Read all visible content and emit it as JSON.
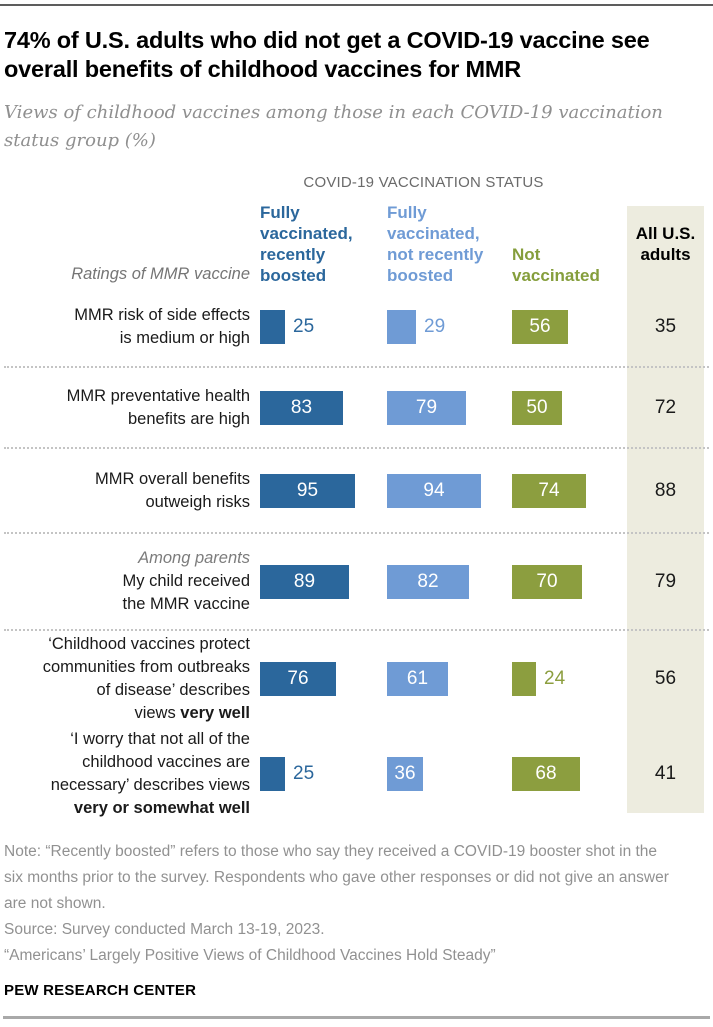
{
  "page": {
    "title": "74% of U.S. adults who did not get a COVID-19 vaccine see overall benefits of childhood vaccines for MMR",
    "subtitle": "Views of childhood vaccines among those in each COVID-19 vaccination status group (%)"
  },
  "chart_data": {
    "type": "bar",
    "orientation": "horizontal",
    "unit": "%",
    "xlim": [
      0,
      100
    ],
    "title": "74% of U.S. adults who did not get a COVID-19 vaccine see overall benefits of childhood vaccines for MMR",
    "subtitle": "Views of childhood vaccines among those in each COVID-19 vaccination status group (%)",
    "group_header": "COVID-19 VACCINATION STATUS",
    "rows_axis_label": "Ratings of MMR vaccine",
    "columns": [
      {
        "id": "fully-vaccinated-recently-boosted",
        "label": "Fully\nvaccinated,\nrecently\nboosted",
        "color": "#2b679c"
      },
      {
        "id": "fully-vaccinated-not-recently-boosted",
        "label": "Fully\nvaccinated,\nnot recently\nboosted",
        "color": "#6f9bd5"
      },
      {
        "id": "not-vaccinated",
        "label": "Not\nvaccinated",
        "color": "#8c9e3f"
      },
      {
        "id": "all-us-adults",
        "label": "All U.S.\nadults",
        "color": "#000000",
        "bg": "#edecdf"
      }
    ],
    "rows": [
      {
        "label": "MMR risk of side effects is medium or high",
        "label_lines": [
          [
            {
              "t": "MMR risk of side effects"
            }
          ],
          [
            {
              "t": "is medium or high"
            }
          ]
        ],
        "values": [
          25,
          29,
          56,
          35
        ],
        "value_inside": [
          false,
          false,
          true
        ],
        "separator_after": true
      },
      {
        "label": "MMR preventative health benefits are high",
        "label_lines": [
          [
            {
              "t": "MMR preventative health"
            }
          ],
          [
            {
              "t": "benefits are high"
            }
          ]
        ],
        "values": [
          83,
          79,
          50,
          72
        ],
        "value_inside": [
          true,
          true,
          true
        ],
        "separator_after": true
      },
      {
        "label": "MMR overall benefits outweigh risks",
        "label_lines": [
          [
            {
              "t": "MMR overall benefits"
            }
          ],
          [
            {
              "t": "outweigh risks"
            }
          ]
        ],
        "values": [
          95,
          94,
          74,
          88
        ],
        "value_inside": [
          true,
          true,
          true
        ],
        "separator_after": true
      },
      {
        "label": "My child received the MMR vaccine",
        "pre_label": "Among parents",
        "label_lines": [
          [
            {
              "t": "My child received"
            }
          ],
          [
            {
              "t": "the MMR vaccine"
            }
          ]
        ],
        "values": [
          89,
          82,
          70,
          79
        ],
        "value_inside": [
          true,
          true,
          true
        ],
        "separator_after": true
      },
      {
        "label": "‘Childhood vaccines protect communities from outbreaks of disease’ describes views very well",
        "label_lines": [
          [
            {
              "t": "‘Childhood vaccines protect"
            }
          ],
          [
            {
              "t": "communities from outbreaks"
            }
          ],
          [
            {
              "t": "of disease’ describes"
            }
          ],
          [
            {
              "t": "views "
            },
            {
              "t": "very well",
              "b": true
            }
          ]
        ],
        "values": [
          76,
          61,
          24,
          56
        ],
        "value_inside": [
          true,
          true,
          false
        ],
        "separator_after": false
      },
      {
        "label": "‘I worry that not all of the childhood vaccines are necessary’ describes views very or somewhat well",
        "label_lines": [
          [
            {
              "t": "‘I worry that not all of the"
            }
          ],
          [
            {
              "t": "childhood vaccines are"
            }
          ],
          [
            {
              "t": "necessary’ describes views"
            }
          ],
          [
            {
              "t": "very or somewhat well",
              "b": true
            }
          ]
        ],
        "values": [
          25,
          36,
          68,
          41
        ],
        "value_inside": [
          false,
          true,
          true
        ],
        "separator_after": false
      }
    ]
  },
  "footer": {
    "note": "Note: “Recently boosted” refers to those who say they received a COVID-19 booster shot in the six months prior to the survey. Respondents who gave other responses or did not give an answer are not shown.",
    "source": "Source: Survey conducted March 13-19, 2023.",
    "report": "“Americans’ Largely Positive Views of Childhood Vaccines Hold Steady”",
    "brand": "PEW RESEARCH CENTER"
  }
}
